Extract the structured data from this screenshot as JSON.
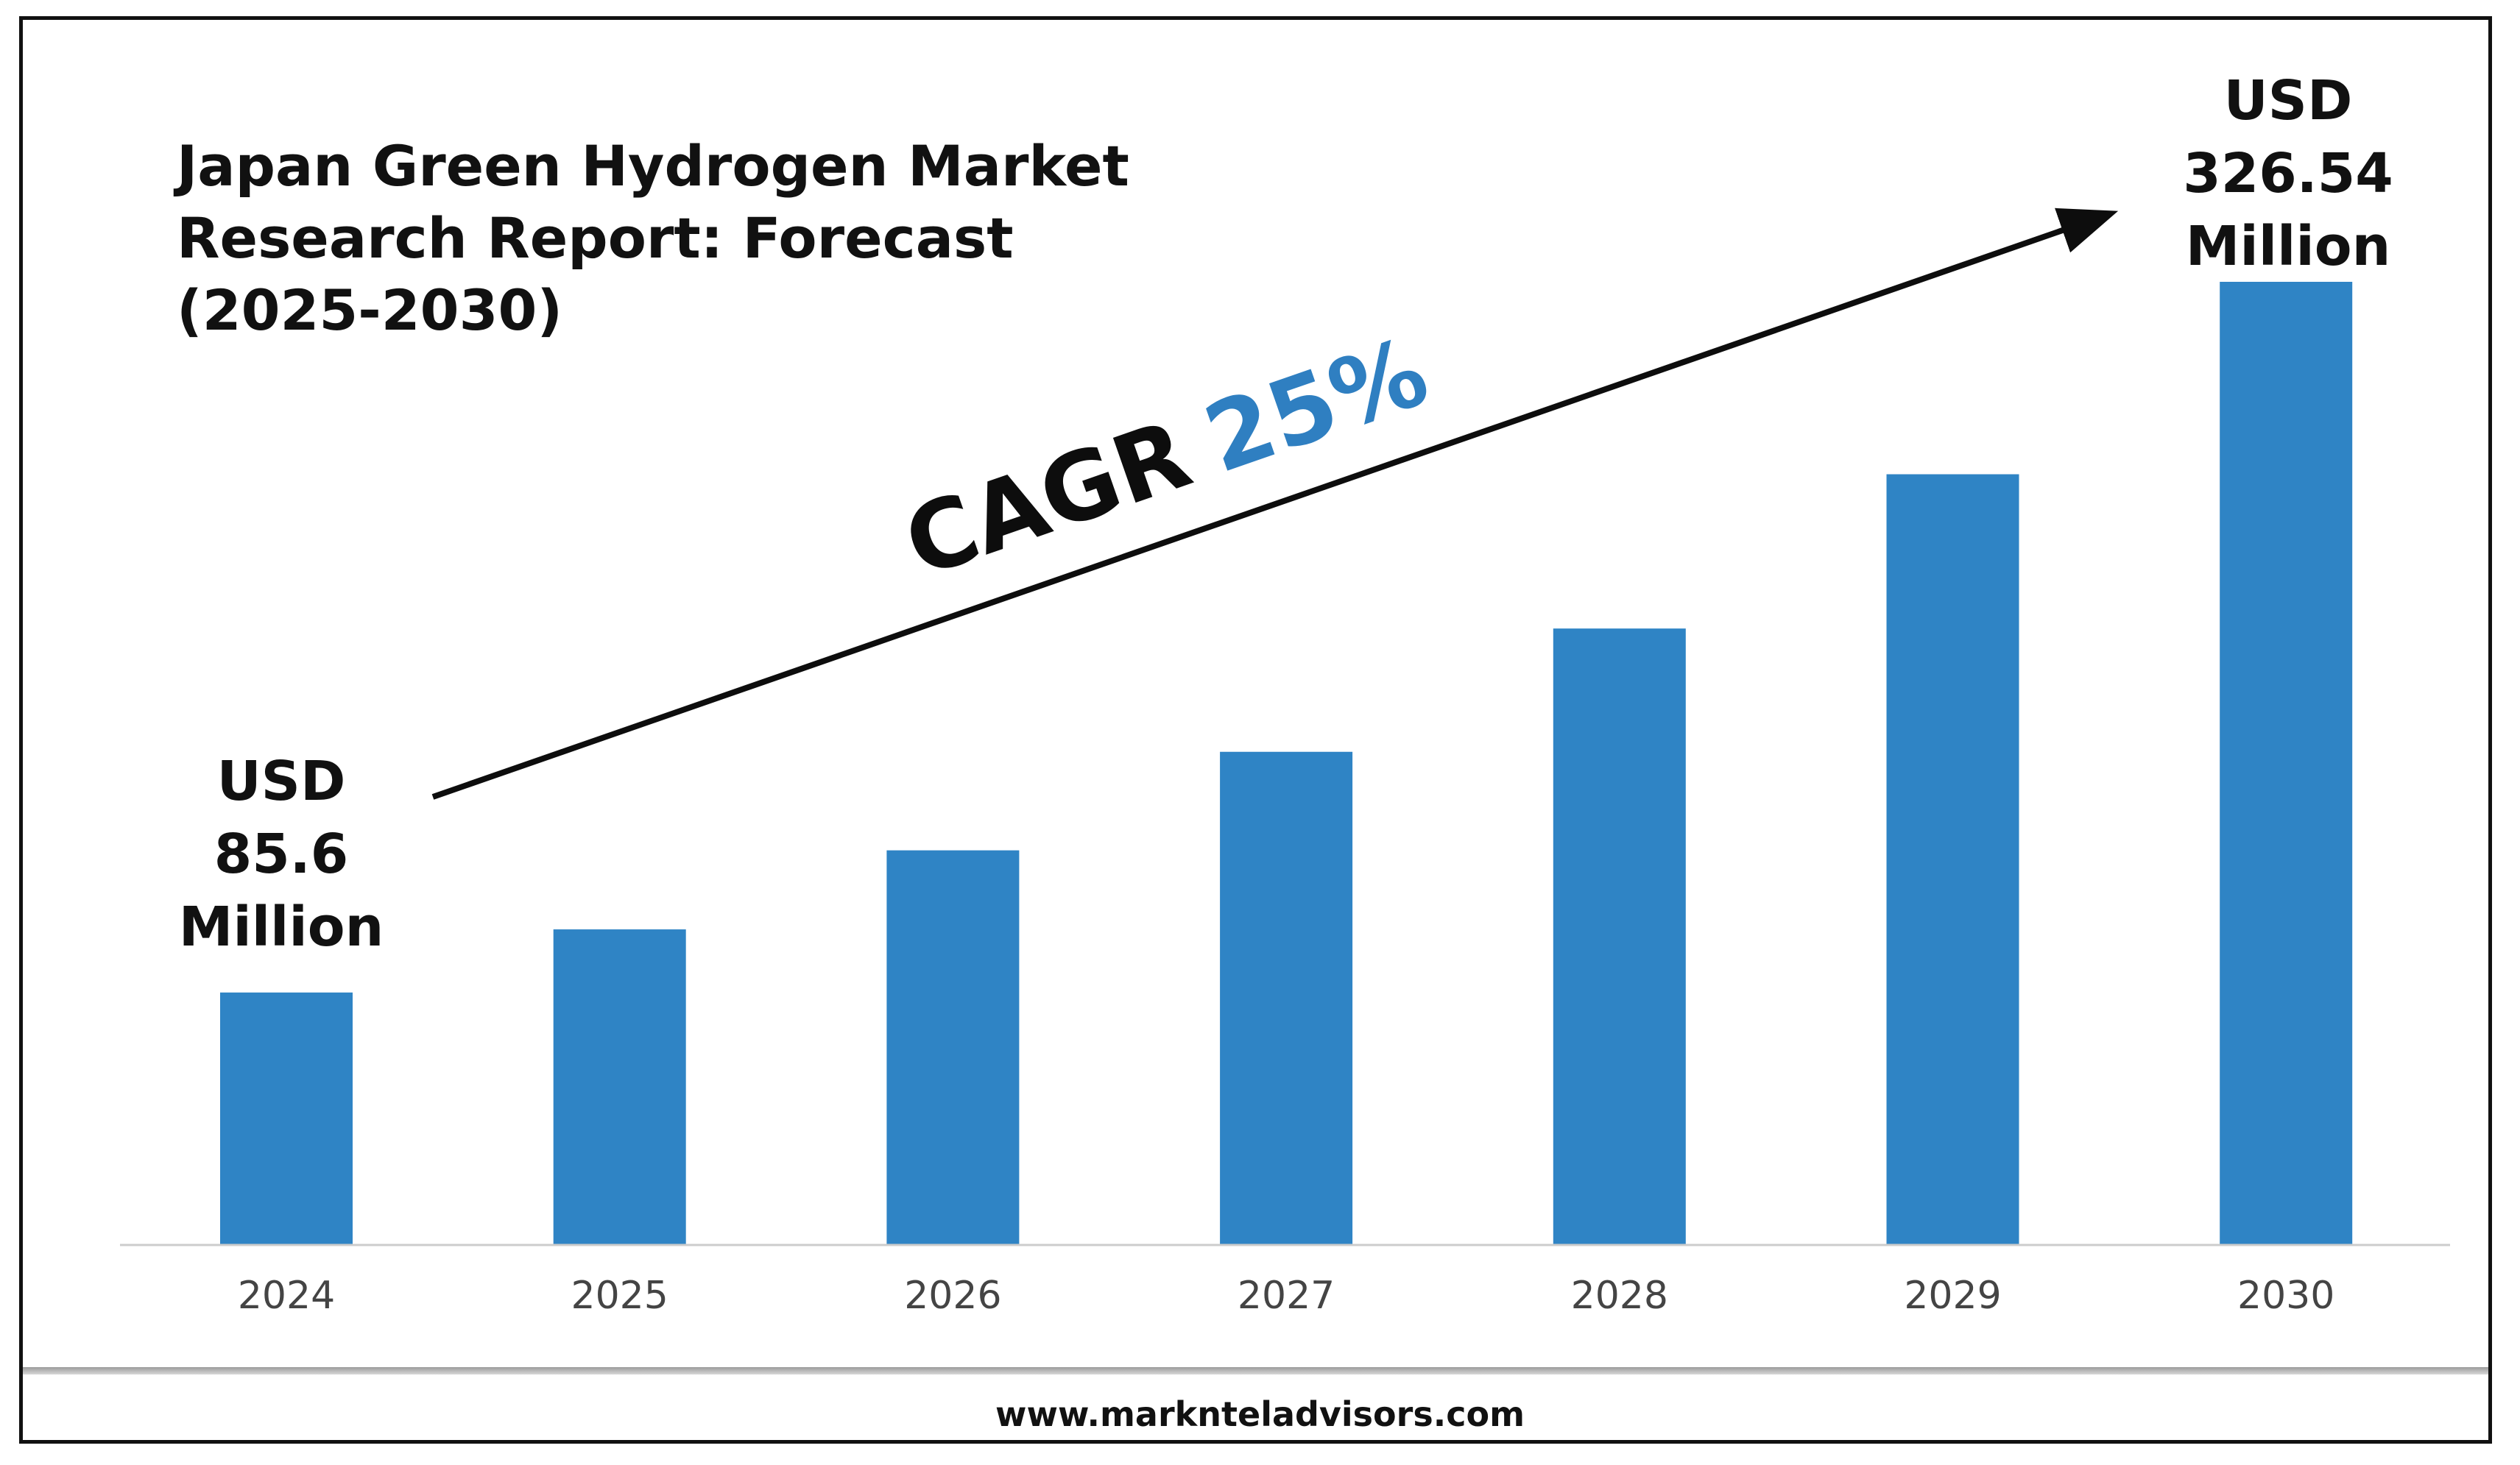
{
  "title": {
    "lines": [
      "Japan Green Hydrogen Market",
      "Research Report: Forecast",
      "(2025-2030)"
    ]
  },
  "cagr": {
    "label": "CAGR",
    "value": "25%"
  },
  "callouts": {
    "start": [
      "USD",
      "85.6",
      "Million"
    ],
    "end": [
      "USD",
      "326.54",
      "Million"
    ]
  },
  "footer": {
    "url": "www.marknteladvisors.com"
  },
  "colors": {
    "bar": "#2f84c5",
    "accent": "#2f7fc1",
    "axis": "#cccccc"
  },
  "chart_data": {
    "type": "bar",
    "categories": [
      "2024",
      "2025",
      "2026",
      "2027",
      "2028",
      "2029",
      "2030"
    ],
    "values": [
      85.6,
      107.0,
      133.8,
      167.2,
      209.0,
      261.3,
      326.54
    ],
    "unit": "USD Million",
    "ylim": [
      0,
      326.54
    ],
    "grid": false,
    "legend": "none"
  }
}
